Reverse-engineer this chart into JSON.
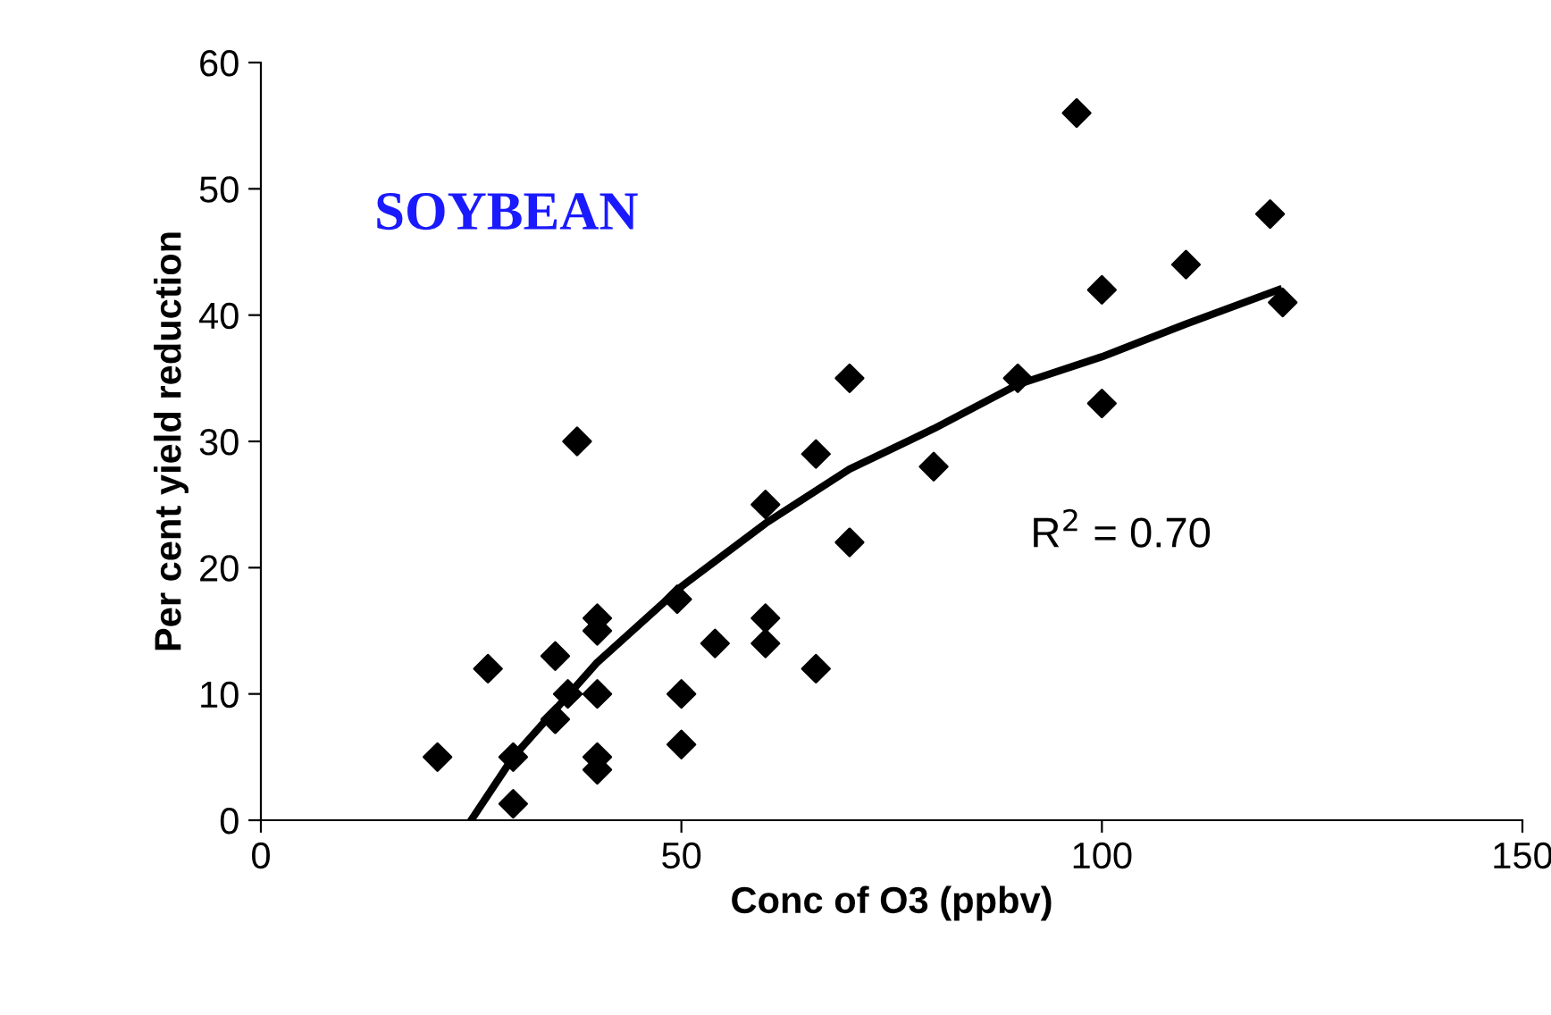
{
  "chart_data": {
    "type": "scatter",
    "xlabel": "Conc of O3 (ppbv)",
    "ylabel": "Per cent yield reduction",
    "xlim": [
      0,
      150
    ],
    "xticks": [
      0,
      50,
      100,
      150
    ],
    "ylim": [
      0,
      60
    ],
    "yticks": [
      0,
      10,
      20,
      30,
      40,
      50,
      60
    ],
    "grid": false,
    "legend": false,
    "annotations": [
      "SOYBEAN",
      "R$^{2}$ = 0.70"
    ],
    "series": [
      {
        "color": "#000000",
        "marker": "diamond",
        "x": [
          21,
          27,
          30,
          30,
          35,
          35,
          36.5,
          37.6,
          40,
          40,
          40,
          40,
          40,
          49.5,
          50,
          50,
          54,
          60,
          60,
          60,
          66,
          66,
          70,
          70,
          80,
          90,
          97,
          100,
          100,
          110,
          120,
          121.5
        ],
        "values": [
          5,
          12,
          5,
          1.3,
          13,
          8,
          10,
          30,
          16,
          15,
          10,
          5,
          4,
          17.5,
          10,
          6,
          14,
          25,
          16,
          14,
          29,
          12,
          22,
          35,
          28,
          35,
          56,
          42,
          33,
          44,
          48,
          41
        ]
      },
      {
        "type": "line",
        "color": "#000000",
        "marker": "none",
        "line_style": "solid",
        "x": [
          25,
          30,
          40,
          50,
          60,
          70,
          80,
          90,
          100,
          110,
          121
        ],
        "values": [
          0,
          5,
          12.5,
          18.5,
          23.5,
          27.8,
          31,
          34.5,
          36.7,
          39.3,
          42
        ]
      }
    ]
  }
}
